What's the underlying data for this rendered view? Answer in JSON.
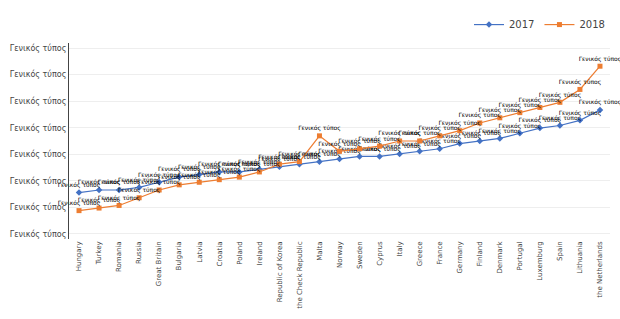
{
  "chart_data": {
    "type": "line",
    "categories": [
      "Hungary",
      "Turkey",
      "Romania",
      "Russia",
      "Great Britain",
      "Bulgaria",
      "Latvia",
      "Croatia",
      "Poland",
      "Ireland",
      "Republic of Korea",
      "the Check Republic",
      "Malta",
      "Norway",
      "Sweden",
      "Cyprus",
      "Italy",
      "Greece",
      "France",
      "Germany",
      "Finland",
      "Denmark",
      "Portugal",
      "Luxemburg",
      "Spain",
      "Lithuania",
      "the Netherlands"
    ],
    "series": [
      {
        "name": "2017",
        "color": "#4472C4",
        "marker": "diamond",
        "values": [
          16,
          17,
          17,
          18,
          20,
          22,
          23,
          24,
          24,
          25,
          26,
          27,
          28,
          29,
          30,
          30,
          31,
          32,
          33,
          35,
          36,
          37,
          39,
          41,
          42,
          44,
          48
        ],
        "value_labels": [
          "Γενικός τύπος",
          "Γενικός τύπος",
          "Γενικός τύπος",
          "Γενικός τύπος",
          "Γενικός τύπος",
          "Γενικός τύπος",
          "Γενικός τύπος",
          "Γενικός τύπος",
          "Γενικός τύπος",
          "Γενικός τύπος",
          "Γενικός τύπος",
          "Γενικός τύπος",
          "Γενικός τύπος",
          "Γενικός τύπος",
          "Γενικός τύπος",
          "Γενικός τύπος",
          "Γενικός τύπος",
          "Γενικός τύπος",
          "Γενικός τύπος",
          "Γενικός τύπος",
          "Γενικός τύπος",
          "Γενικός τύπος",
          "Γενικός τύπος",
          "Γενικός τύπος",
          "Γενικός τύπος",
          "Γενικός τύπος",
          "Γενικός τύπος"
        ]
      },
      {
        "name": "2018",
        "color": "#ED7D31",
        "marker": "square",
        "values": [
          9,
          10,
          11,
          14,
          17,
          19,
          20,
          21,
          22,
          24,
          27,
          28,
          38,
          32,
          33,
          34,
          36,
          36,
          38,
          40,
          43,
          45,
          47,
          49,
          51,
          56,
          65
        ],
        "value_labels": [
          "Γενικός τύπος",
          "Γενικός τύπος",
          "Γενικός τύπος",
          "Γενικός τύπος",
          "Γενικός τύπος",
          "Γενικός τύπος",
          "Γενικός τύπος",
          "Γενικός τύπος",
          "Γενικός τύπος",
          "Γενικός τύπος",
          "Γενικός τύπος",
          "Γενικός τύπος",
          "Γενικός τύπος",
          "Γενικός τύπος",
          "Γενικός τύπος",
          "Γενικός τύπος",
          "Γενικός τύπος",
          "Γενικός τύπος",
          "Γενικός τύπος",
          "Γενικός τύπος",
          "Γενικός τύπος",
          "Γενικός τύπος",
          "Γενικός τύπος",
          "Γενικός τύπος",
          "Γενικός τύπος",
          "Γενικός τύπος",
          "Γενικός τύπος"
        ]
      }
    ],
    "ylim": [
      -2,
      74
    ],
    "yticks": [
      {
        "value": 0,
        "label": "Γενικός τύπος"
      },
      {
        "value": 10.285714285714286,
        "label": "Γενικός τύπος"
      },
      {
        "value": 20.571428571428573,
        "label": "Γενικός τύπος"
      },
      {
        "value": 30.857142857142858,
        "label": "Γενικός τύπος"
      },
      {
        "value": 41.142857142857146,
        "label": "Γενικός τύπος"
      },
      {
        "value": 51.42857142857143,
        "label": "Γενικός τύπος"
      },
      {
        "value": 61.71428571428572,
        "label": "Γενικός τύπος"
      },
      {
        "value": 72,
        "label": "Γενικός τύπος"
      }
    ],
    "grid": true,
    "legend": "top"
  }
}
